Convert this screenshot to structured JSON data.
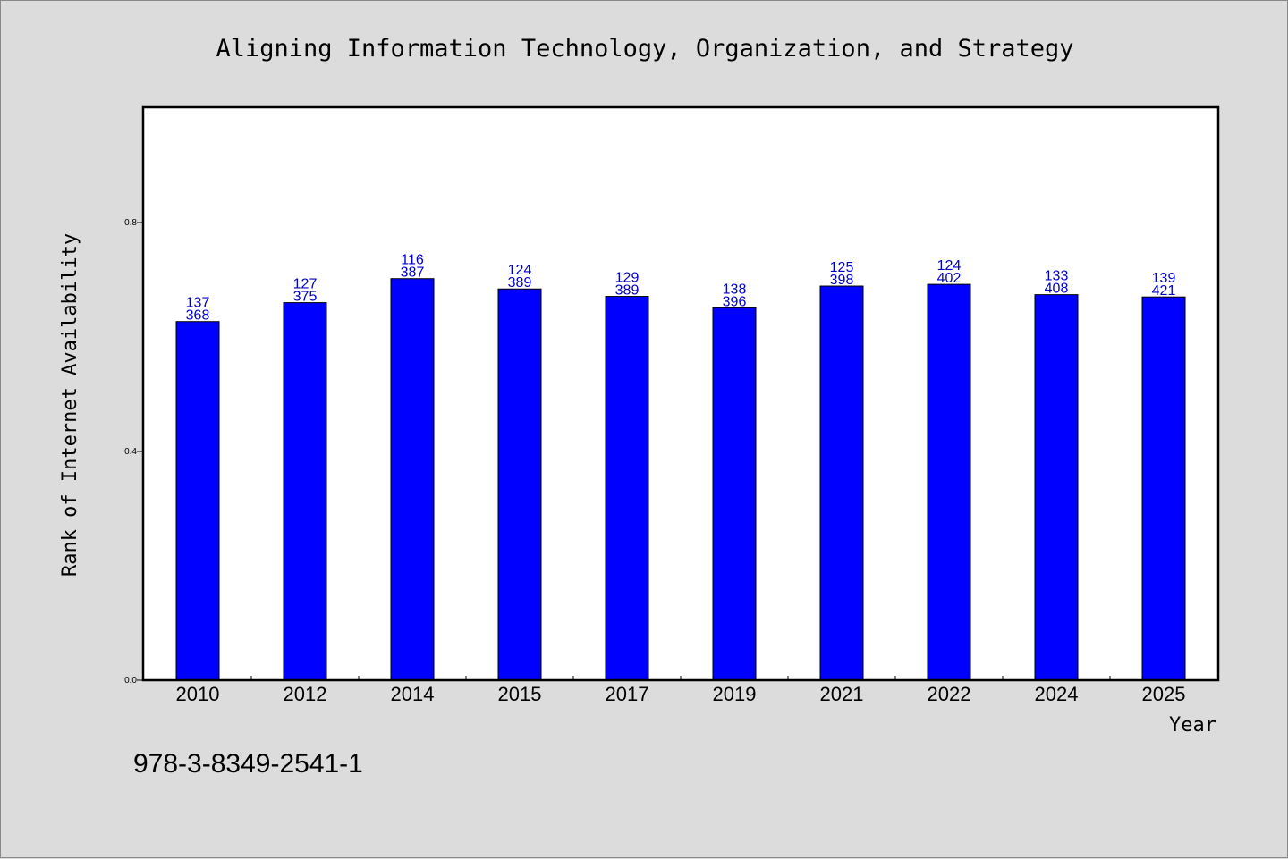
{
  "page": {
    "footer_id": "978-3-8349-2541-1"
  },
  "chart_data": {
    "type": "bar",
    "title": "Aligning Information Technology, Organization, and Strategy",
    "xlabel": "Year",
    "ylabel": "Rank of Internet Availability",
    "ylim": [
      0,
      1.0
    ],
    "yticks": [
      0.0,
      0.4,
      0.8
    ],
    "ytick_labels": [
      "0.0",
      "0.4",
      "0.8"
    ],
    "grid": false,
    "categories": [
      "2010",
      "2012",
      "2014",
      "2015",
      "2017",
      "2019",
      "2021",
      "2022",
      "2024",
      "2025"
    ],
    "values": [
      0.627,
      0.66,
      0.702,
      0.684,
      0.671,
      0.651,
      0.689,
      0.692,
      0.674,
      0.67
    ],
    "label_top": [
      "137",
      "127",
      "116",
      "124",
      "129",
      "138",
      "125",
      "124",
      "133",
      "139"
    ],
    "label_bottom": [
      "368",
      "375",
      "387",
      "389",
      "389",
      "396",
      "398",
      "402",
      "408",
      "421"
    ],
    "colors": {
      "bar": "#0000ff",
      "bar_edge": "#000000",
      "data_label": "#0000cc",
      "plot_bg": "#ffffff",
      "figure_bg": "#dcdcdc"
    }
  }
}
